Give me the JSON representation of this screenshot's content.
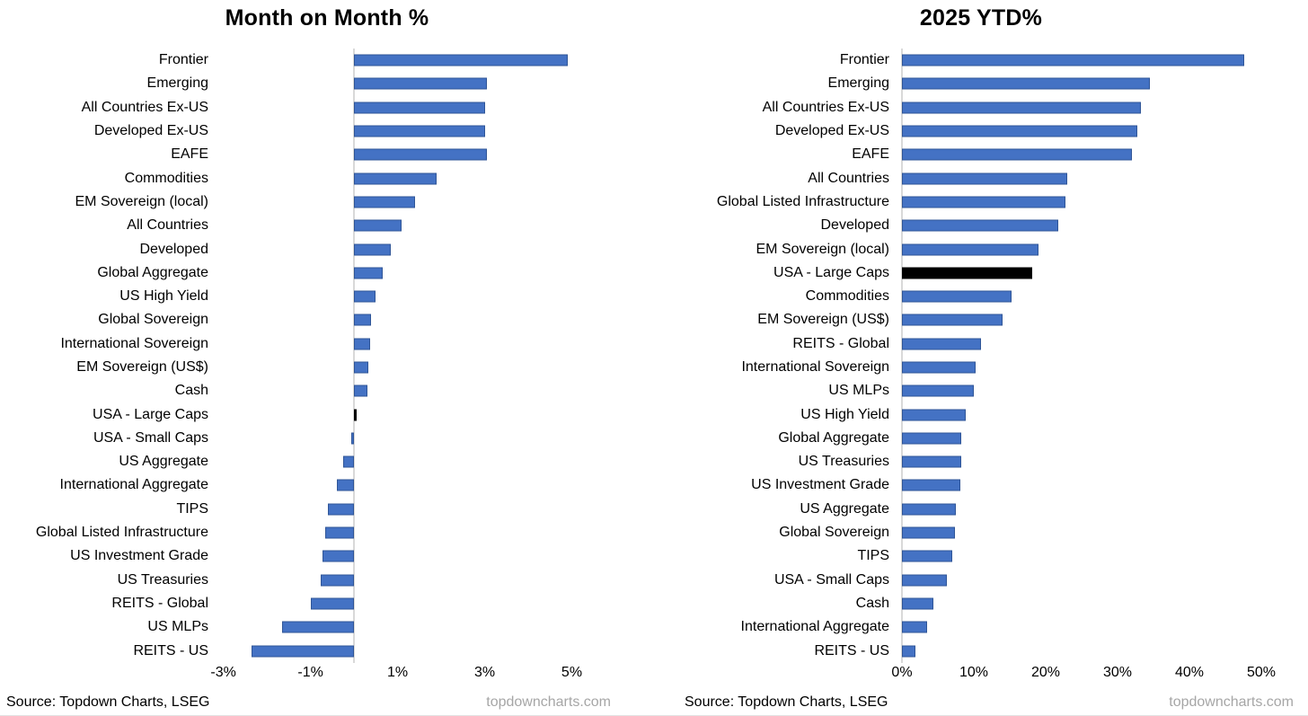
{
  "colors": {
    "bar_blue": "#4472C4",
    "bar_blue_border": "#2F5597",
    "bar_black": "#000000",
    "axis_line": "#D9D9D9",
    "website_gray": "#A6A6A6"
  },
  "footer": {
    "left": {
      "source": "Source: Topdown Charts, LSEG",
      "website": "topdowncharts.com"
    },
    "right": {
      "source": "Source: Topdown Charts, LSEG",
      "website": "topdowncharts.com"
    }
  },
  "chart_data": [
    {
      "type": "bar",
      "orientation": "horizontal",
      "title": "Month on Month %",
      "xlabel": "",
      "ylabel": "",
      "xlim": [
        -3.24,
        6.31
      ],
      "grid": false,
      "legend": false,
      "ticks": [
        {
          "value": -3,
          "label": "-3%"
        },
        {
          "value": -1,
          "label": "-1%"
        },
        {
          "value": 1,
          "label": "1%"
        },
        {
          "value": 3,
          "label": "3%"
        },
        {
          "value": 5,
          "label": "5%"
        }
      ],
      "bars": [
        {
          "label": "Frontier",
          "value": 4.9,
          "color": "blue"
        },
        {
          "label": "Emerging",
          "value": 3.05,
          "color": "blue"
        },
        {
          "label": "All Countries Ex-US",
          "value": 3.0,
          "color": "blue"
        },
        {
          "label": "Developed Ex-US",
          "value": 3.0,
          "color": "blue"
        },
        {
          "label": "EAFE",
          "value": 3.05,
          "color": "blue"
        },
        {
          "label": "Commodities",
          "value": 1.9,
          "color": "blue"
        },
        {
          "label": "EM Sovereign (local)",
          "value": 1.4,
          "color": "blue"
        },
        {
          "label": "All Countries",
          "value": 1.1,
          "color": "blue"
        },
        {
          "label": "Developed",
          "value": 0.85,
          "color": "blue"
        },
        {
          "label": "Global Aggregate",
          "value": 0.65,
          "color": "blue"
        },
        {
          "label": "US High Yield",
          "value": 0.5,
          "color": "blue"
        },
        {
          "label": "Global Sovereign",
          "value": 0.4,
          "color": "blue"
        },
        {
          "label": "International Sovereign",
          "value": 0.36,
          "color": "blue"
        },
        {
          "label": "EM Sovereign (US$)",
          "value": 0.33,
          "color": "blue"
        },
        {
          "label": "Cash",
          "value": 0.3,
          "color": "blue"
        },
        {
          "label": "USA - Large Caps",
          "value": 0.06,
          "color": "black"
        },
        {
          "label": "USA - Small Caps",
          "value": -0.06,
          "color": "blue"
        },
        {
          "label": "US Aggregate",
          "value": -0.25,
          "color": "blue"
        },
        {
          "label": "International Aggregate",
          "value": -0.4,
          "color": "blue"
        },
        {
          "label": "TIPS",
          "value": -0.6,
          "color": "blue"
        },
        {
          "label": "Global Listed Infrastructure",
          "value": -0.66,
          "color": "blue"
        },
        {
          "label": "US Investment Grade",
          "value": -0.72,
          "color": "blue"
        },
        {
          "label": "US Treasuries",
          "value": -0.76,
          "color": "blue"
        },
        {
          "label": "REITS - Global",
          "value": -1.0,
          "color": "blue"
        },
        {
          "label": "US MLPs",
          "value": -1.65,
          "color": "blue"
        },
        {
          "label": "REITS - US",
          "value": -2.35,
          "color": "blue"
        }
      ]
    },
    {
      "type": "bar",
      "orientation": "horizontal",
      "title": "2025 YTD%",
      "xlabel": "",
      "ylabel": "",
      "xlim": [
        -0.875,
        55.375
      ],
      "grid": false,
      "legend": false,
      "ticks": [
        {
          "value": 0,
          "label": "0%"
        },
        {
          "value": 10,
          "label": "10%"
        },
        {
          "value": 20,
          "label": "20%"
        },
        {
          "value": 30,
          "label": "30%"
        },
        {
          "value": 40,
          "label": "40%"
        },
        {
          "value": 50,
          "label": "50%"
        }
      ],
      "bars": [
        {
          "label": "Frontier",
          "value": 47.6,
          "color": "blue"
        },
        {
          "label": "Emerging",
          "value": 34.5,
          "color": "blue"
        },
        {
          "label": "All Countries Ex-US",
          "value": 33.3,
          "color": "blue"
        },
        {
          "label": "Developed Ex-US",
          "value": 32.8,
          "color": "blue"
        },
        {
          "label": "EAFE",
          "value": 32.0,
          "color": "blue"
        },
        {
          "label": "All Countries",
          "value": 23.0,
          "color": "blue"
        },
        {
          "label": "Global Listed Infrastructure",
          "value": 22.7,
          "color": "blue"
        },
        {
          "label": "Developed",
          "value": 21.8,
          "color": "blue"
        },
        {
          "label": "EM Sovereign (local)",
          "value": 19.0,
          "color": "blue"
        },
        {
          "label": "USA - Large Caps",
          "value": 18.1,
          "color": "black"
        },
        {
          "label": "Commodities",
          "value": 15.3,
          "color": "blue"
        },
        {
          "label": "EM Sovereign (US$)",
          "value": 14.0,
          "color": "blue"
        },
        {
          "label": "REITS - Global",
          "value": 11.0,
          "color": "blue"
        },
        {
          "label": "International Sovereign",
          "value": 10.3,
          "color": "blue"
        },
        {
          "label": "US MLPs",
          "value": 10.0,
          "color": "blue"
        },
        {
          "label": "US High Yield",
          "value": 8.9,
          "color": "blue"
        },
        {
          "label": "Global Aggregate",
          "value": 8.3,
          "color": "blue"
        },
        {
          "label": "US Treasuries",
          "value": 8.25,
          "color": "blue"
        },
        {
          "label": "US Investment Grade",
          "value": 8.1,
          "color": "blue"
        },
        {
          "label": "US Aggregate",
          "value": 7.5,
          "color": "blue"
        },
        {
          "label": "Global Sovereign",
          "value": 7.4,
          "color": "blue"
        },
        {
          "label": "TIPS",
          "value": 7.0,
          "color": "blue"
        },
        {
          "label": "USA - Small Caps",
          "value": 6.3,
          "color": "blue"
        },
        {
          "label": "Cash",
          "value": 4.4,
          "color": "blue"
        },
        {
          "label": "International Aggregate",
          "value": 3.5,
          "color": "blue"
        },
        {
          "label": "REITS - US",
          "value": 1.9,
          "color": "blue"
        }
      ]
    }
  ]
}
